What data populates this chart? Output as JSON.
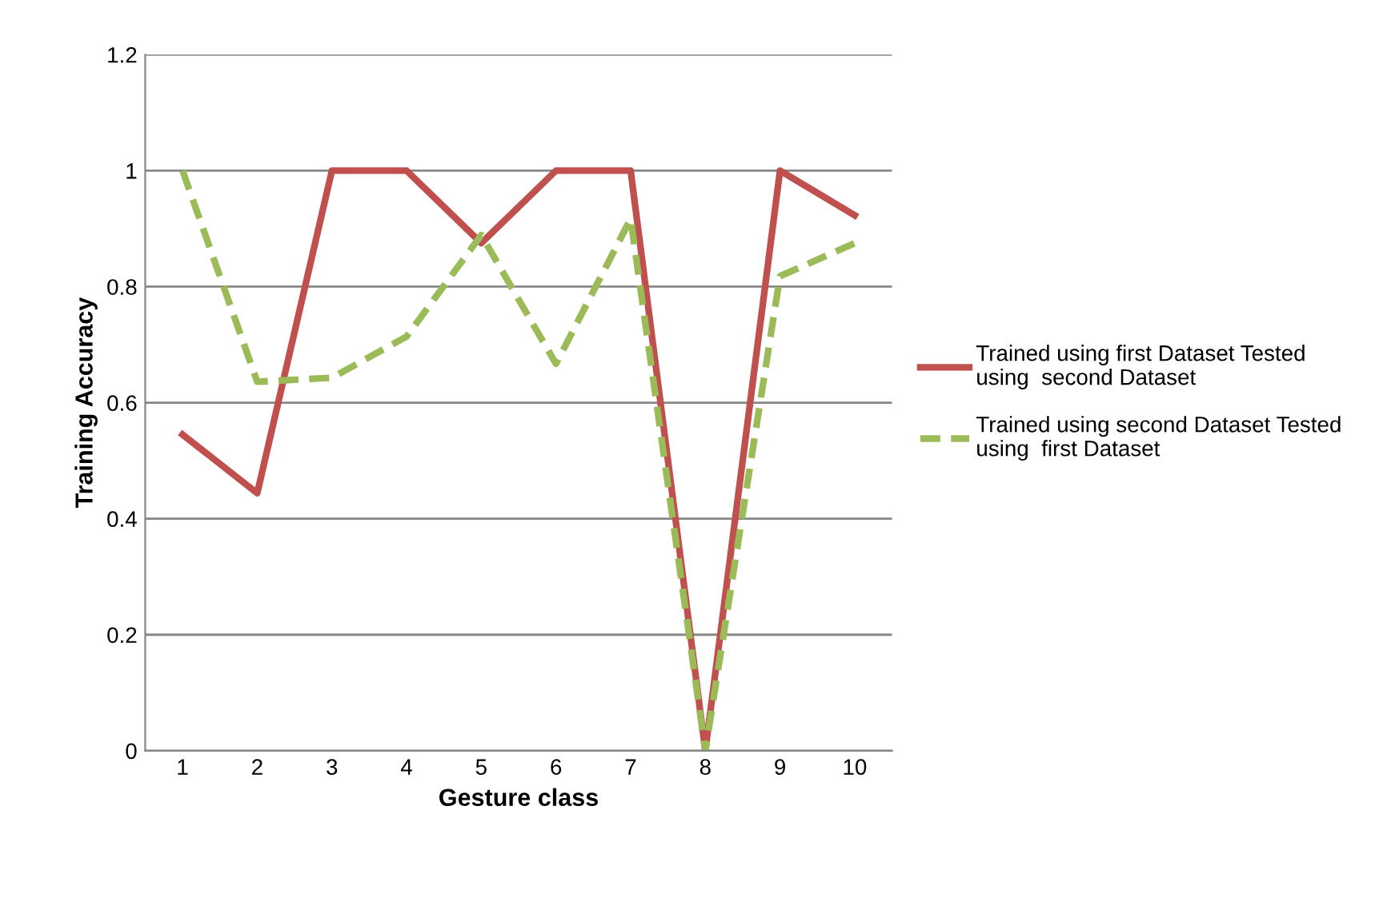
{
  "chart_data": {
    "type": "line",
    "xlabel": "Gesture class",
    "ylabel": "Training Accuracy",
    "categories": [
      "1",
      "2",
      "3",
      "4",
      "5",
      "6",
      "7",
      "8",
      "9",
      "10"
    ],
    "series": [
      {
        "name": "Trained using first Dataset Tested\nusing  second Dataset",
        "color": "#c0504d",
        "line_style": "solid",
        "values": [
          0.545,
          0.444,
          1,
          1,
          0.875,
          1,
          1,
          0,
          1,
          0.923
        ]
      },
      {
        "name": "Trained using second Dataset Tested\nusing  first Dataset",
        "color": "#9bbb59",
        "line_style": "dashed",
        "values": [
          1,
          0.636,
          0.643,
          0.714,
          0.889,
          0.667,
          0.917,
          0,
          0.818,
          0.875
        ]
      }
    ],
    "ylim": [
      0,
      1.2
    ],
    "yticks": [
      0,
      0.2,
      0.4,
      0.6,
      0.8,
      1,
      1.2
    ],
    "grid": "y",
    "legend": "right",
    "marker": "none"
  }
}
